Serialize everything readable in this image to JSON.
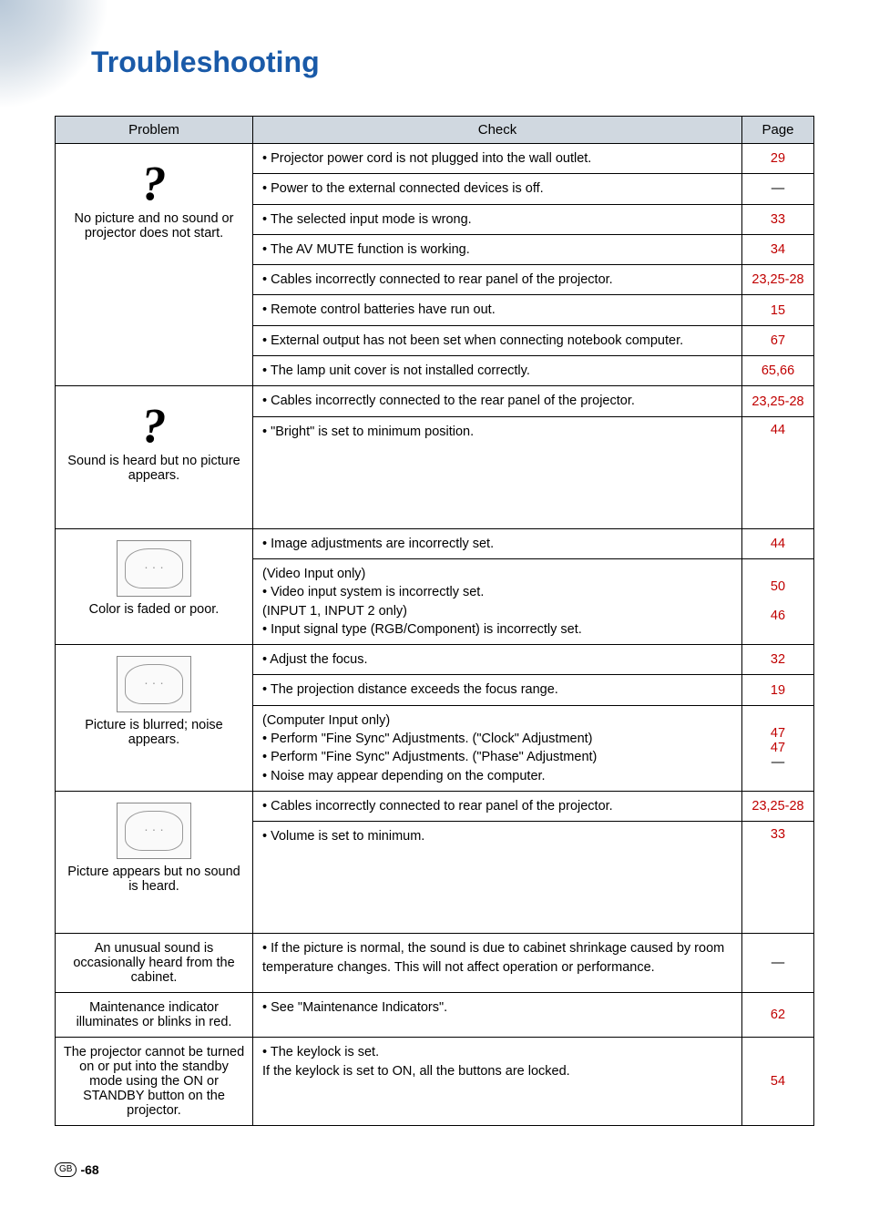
{
  "title": "Troubleshooting",
  "columns": {
    "problem": "Problem",
    "check": "Check",
    "page": "Page"
  },
  "footer_label": "GB",
  "footer_page": "-68",
  "page_colors": {
    "link": "#c00000",
    "header_bg": "#d0d8e0",
    "title": "#1a5aa8"
  },
  "problems": [
    {
      "label": "No picture and no sound or projector does not start.",
      "icon": "question",
      "rows": [
        {
          "check": "• Projector power cord is not plugged into the wall outlet.",
          "page": "29",
          "link": true
        },
        {
          "check": "• Power to the external connected devices is off.",
          "page": "—",
          "link": false
        },
        {
          "check": "• The selected input mode is wrong.",
          "page": "33",
          "link": true
        },
        {
          "check": "• The AV MUTE function is working.",
          "page": "34",
          "link": true
        },
        {
          "check": "• Cables incorrectly connected to rear panel of the projector.",
          "page": "23,25-28",
          "link": true
        },
        {
          "check": "• Remote control batteries have run out.",
          "page": "15",
          "link": true
        },
        {
          "check": "• External output has not been set when connecting notebook computer.",
          "page": "67",
          "link": true
        },
        {
          "check": "• The lamp unit cover is not installed correctly.",
          "page": "65,66",
          "link": true
        }
      ]
    },
    {
      "label": "Sound is heard but no picture appears.",
      "icon": "question",
      "rows": [
        {
          "check": "• Cables incorrectly connected to the rear panel of the projector.",
          "page": "23,25-28",
          "link": true
        },
        {
          "check": "• \"Bright\" is set to minimum position.",
          "page": "44",
          "link": true,
          "tall": true
        }
      ]
    },
    {
      "label": "Color is faded or poor.",
      "icon": "sketch",
      "rows": [
        {
          "check": "• Image adjustments are incorrectly set.",
          "page": "44",
          "link": true
        },
        {
          "check_lines": [
            "(Video Input only)",
            "• Video input system is incorrectly set.",
            "(INPUT 1, INPUT 2 only)",
            "• Input signal type (RGB/Component) is incorrectly set."
          ],
          "page_lines": [
            "",
            "50",
            "",
            "46"
          ],
          "link": true
        }
      ]
    },
    {
      "label": "Picture is blurred; noise appears.",
      "icon": "sketch",
      "rows": [
        {
          "check": "• Adjust the focus.",
          "page": "32",
          "link": true
        },
        {
          "check": "• The projection distance exceeds the focus range.",
          "page": "19",
          "link": true
        },
        {
          "check_lines": [
            "(Computer Input only)",
            "• Perform \"Fine Sync\" Adjustments. (\"Clock\" Adjustment)",
            "• Perform \"Fine Sync\" Adjustments. (\"Phase\" Adjustment)",
            "• Noise may appear depending on the computer."
          ],
          "page_lines": [
            "",
            "47",
            "47",
            "—"
          ],
          "link": true
        }
      ]
    },
    {
      "label": "Picture appears but no sound is heard.",
      "icon": "sketch",
      "rows": [
        {
          "check": "• Cables incorrectly connected to rear panel of the projector.",
          "page": "23,25-28",
          "link": true
        },
        {
          "check": "• Volume is set to minimum.",
          "page": "33",
          "link": true,
          "tall": true
        }
      ]
    },
    {
      "label": "An unusual sound is occasionally heard from the cabinet.",
      "icon": null,
      "rows": [
        {
          "check": "• If the picture is normal, the sound is due to cabinet shrinkage caused by room temperature changes. This will not affect operation or performance.",
          "page": "—",
          "link": false
        }
      ]
    },
    {
      "label": "Maintenance indicator illuminates or blinks in red.",
      "icon": null,
      "rows": [
        {
          "check": "• See \"Maintenance Indicators\".",
          "page": "62",
          "link": true
        }
      ]
    },
    {
      "label": "The projector cannot be turned on or put into the standby mode using the ON or STANDBY button on the projector.",
      "icon": null,
      "rows": [
        {
          "check_lines": [
            "• The keylock is set.",
            "  If the keylock is set to ON, all the buttons are locked."
          ],
          "page": "54",
          "link": true
        }
      ]
    }
  ]
}
